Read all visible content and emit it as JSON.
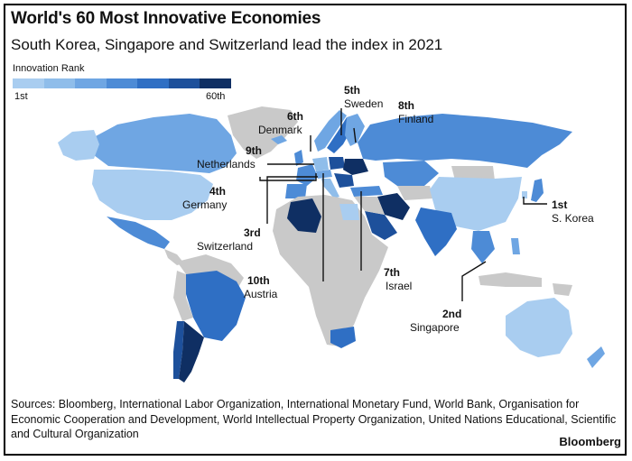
{
  "title": "World's 60 Most Innovative Economies",
  "subtitle": "South Korea, Singapore and Switzerland lead the index in 2021",
  "legend": {
    "title": "Innovation Rank",
    "low_label": "1st",
    "high_label": "60th",
    "colors": [
      "#a9cdf0",
      "#8fbdea",
      "#6fa6e3",
      "#4d8bd6",
      "#2f6fc4",
      "#1d509b",
      "#0f2f63"
    ]
  },
  "colors": {
    "non_ranked": "#c9c9c9",
    "ocean": "#ffffff",
    "leader_line": "#111111"
  },
  "callouts": [
    {
      "rank": "1st",
      "country": "S. Korea"
    },
    {
      "rank": "2nd",
      "country": "Singapore"
    },
    {
      "rank": "3rd",
      "country": "Switzerland"
    },
    {
      "rank": "4th",
      "country": "Germany"
    },
    {
      "rank": "5th",
      "country": "Sweden"
    },
    {
      "rank": "6th",
      "country": "Denmark"
    },
    {
      "rank": "7th",
      "country": "Israel"
    },
    {
      "rank": "8th",
      "country": "Finland"
    },
    {
      "rank": "9th",
      "country": "Netherlands"
    },
    {
      "rank": "10th",
      "country": "Austria"
    }
  ],
  "sources": "Sources: Bloomberg, International Labor Organization, International Monetary Fund, World Bank, Organisation for Economic Cooperation and Development, World Intellectual Property Organization, United Nations Educational, Scientific and Cultural Organization",
  "brand": "Bloomberg"
}
